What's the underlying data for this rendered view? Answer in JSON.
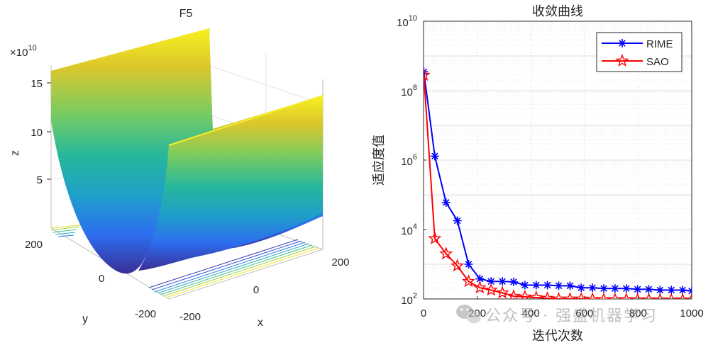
{
  "chart_data": [
    {
      "type": "surface3d",
      "title": "F5",
      "xlabel": "x",
      "ylabel": "y",
      "zlabel": "z",
      "z_multiplier": "×10",
      "z_exponent": "10",
      "x_ticks": [
        "-200",
        "0",
        "200"
      ],
      "y_ticks": [
        "200",
        "0",
        "-200"
      ],
      "z_ticks": [
        "5",
        "10",
        "15"
      ],
      "xlim": [
        -200,
        200
      ],
      "ylim": [
        -200,
        200
      ],
      "zlim": [
        0,
        16
      ]
    },
    {
      "type": "line",
      "title": "收敛曲线",
      "xlabel": "迭代次数",
      "ylabel": "适应度值",
      "yscale": "log",
      "xlim": [
        0,
        1000
      ],
      "ylim": [
        100,
        10000000000
      ],
      "x_ticks": [
        "0",
        "200",
        "400",
        "600",
        "800",
        "1000"
      ],
      "y_ticks": [
        {
          "base": "10",
          "exp": "2"
        },
        {
          "base": "10",
          "exp": "4"
        },
        {
          "base": "10",
          "exp": "6"
        },
        {
          "base": "10",
          "exp": "8"
        },
        {
          "base": "10",
          "exp": "10"
        }
      ],
      "x": [
        1,
        42,
        84,
        126,
        168,
        210,
        252,
        294,
        336,
        378,
        420,
        462,
        504,
        546,
        588,
        630,
        672,
        714,
        756,
        798,
        840,
        882,
        924,
        966,
        1000
      ],
      "series": [
        {
          "name": "RIME",
          "color": "#0000ff",
          "marker": "asterisk",
          "values": [
            350000000,
            1300000,
            60000,
            18000,
            1000,
            380,
            320,
            320,
            310,
            250,
            250,
            250,
            240,
            240,
            210,
            210,
            200,
            200,
            200,
            190,
            190,
            180,
            180,
            180,
            170
          ]
        },
        {
          "name": "SAO",
          "color": "#ff0000",
          "marker": "star",
          "values": [
            280000000,
            5500,
            2000,
            900,
            320,
            210,
            180,
            150,
            120,
            115,
            110,
            105,
            100,
            100,
            100,
            98,
            97,
            96,
            96,
            95,
            95,
            94,
            94,
            94,
            94
          ]
        }
      ],
      "legend_position": "top-right"
    }
  ],
  "watermark": "公众号 · 强盛机器学习"
}
